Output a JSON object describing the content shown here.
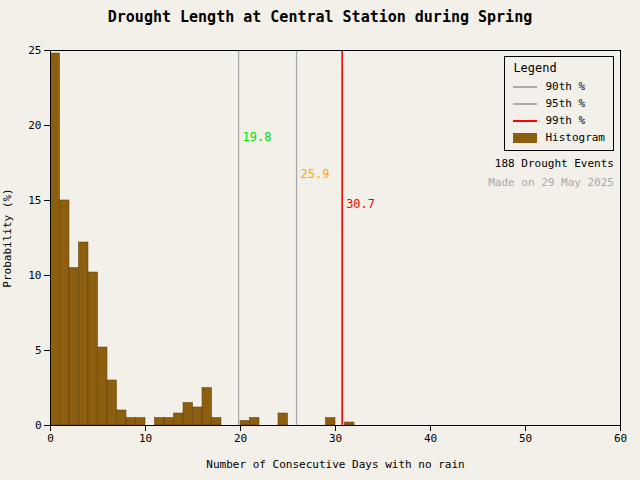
{
  "chart_data": {
    "type": "histogram",
    "title": "Drought Length at Central Station during Spring",
    "xlabel": "Number of Consecutive Days with no rain",
    "ylabel": "Probability (%)",
    "bins": [
      0,
      1,
      2,
      3,
      4,
      5,
      6,
      7,
      8,
      9,
      10,
      11,
      12,
      13,
      14,
      15,
      16,
      17,
      18,
      19,
      20,
      21,
      22,
      23,
      24,
      25,
      26,
      27,
      28,
      29,
      30,
      31,
      32,
      33,
      34,
      35,
      36,
      37,
      38,
      39,
      40,
      41,
      42,
      43,
      44,
      45,
      46,
      47,
      48,
      49,
      50,
      51,
      52,
      53,
      54,
      55,
      56,
      57,
      58,
      59,
      60
    ],
    "series": [
      {
        "name": "Histogram",
        "color": "#8B5E10",
        "edge_color": "#5C3A00",
        "values": [
          24.8,
          15.0,
          10.5,
          12.2,
          10.2,
          5.2,
          3.0,
          1.0,
          0.5,
          0.5,
          0.0,
          0.5,
          0.5,
          0.8,
          1.5,
          1.2,
          2.5,
          0.5,
          0.0,
          0.0,
          0.3,
          0.5,
          0.0,
          0.0,
          0.8,
          0.0,
          0.0,
          0.0,
          0.0,
          0.5,
          0.0,
          0.2,
          0.0,
          0.0,
          0.0,
          0.0,
          0.0,
          0.0,
          0.0,
          0.0,
          0.0,
          0.0,
          0.0,
          0.0,
          0.0,
          0.0,
          0.0,
          0.0,
          0.0,
          0.0,
          0.0,
          0.0,
          0.0,
          0.0,
          0.0,
          0.0,
          0.0,
          0.0,
          0.0,
          0.0
        ]
      }
    ],
    "annotations": [
      {
        "name": "90th %",
        "x": 19.8,
        "text": "19.8",
        "color": "#00DD00",
        "line_color": "#AAAAAA"
      },
      {
        "name": "95th %",
        "x": 25.9,
        "text": "25.9",
        "color": "#FFA500",
        "line_color": "#AAAAAA"
      },
      {
        "name": "99th %",
        "x": 30.7,
        "text": "30.7",
        "color": "#FF0000",
        "line_color": "#FF0000"
      }
    ],
    "texts": [
      {
        "text": "188 Drought Events",
        "color": "black"
      },
      {
        "text": "Made on 29 May 2025",
        "color": "#AAAAAA"
      }
    ],
    "xlim": [
      0,
      60
    ],
    "ylim": [
      0,
      25
    ],
    "xticks": [
      0,
      10,
      20,
      30,
      40,
      50,
      60
    ],
    "yticks": [
      0,
      5,
      10,
      15,
      20,
      25
    ],
    "legend": "upper right",
    "legend_title": "Legend",
    "background": "#F2F0E8",
    "grid": false
  }
}
